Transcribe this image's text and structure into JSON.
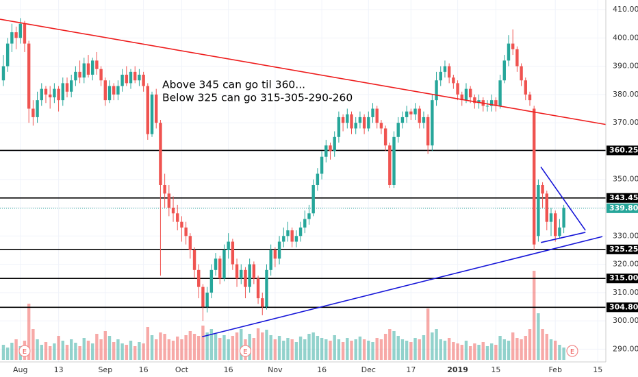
{
  "chart_data": {
    "type": "candlestick",
    "annotations": [
      "Above 345 can go til 360...",
      "Below 325 can go 315-305-290-260"
    ],
    "xlim": [
      -0.8,
      141.9
    ],
    "ylim": [
      285.5,
      413.4
    ],
    "xticks": [
      {
        "value": 4,
        "label": "Aug"
      },
      13,
      {
        "value": 24,
        "label": "Sep"
      },
      {
        "value": 33,
        "label": "16"
      },
      {
        "value": 42,
        "label": "Oct"
      },
      {
        "value": 53,
        "label": "16"
      },
      {
        "value": 64,
        "label": "Nov"
      },
      {
        "value": 75,
        "label": "16"
      },
      {
        "value": 86,
        "label": "Dec"
      },
      {
        "value": 96,
        "label": "17"
      },
      {
        "value": 107,
        "label": "2019"
      },
      {
        "value": 116,
        "label": "15"
      },
      {
        "value": 130,
        "label": "Feb"
      },
      {
        "value": 140,
        "label": "15"
      }
    ],
    "yticks": [
      {
        "value": 290,
        "label": "290.00"
      },
      {
        "value": 300,
        "label": "300.00"
      },
      {
        "value": 310,
        "label": "310.00"
      },
      {
        "value": 320,
        "label": "320.00"
      },
      {
        "value": 330,
        "label": "330.00"
      },
      {
        "value": 340,
        "label": "340.00"
      },
      {
        "value": 350,
        "label": "350.00"
      },
      {
        "value": 360,
        "label": "360.00"
      },
      {
        "value": 370,
        "label": "370.00"
      },
      {
        "value": 380,
        "label": "380.00"
      },
      {
        "value": 390,
        "label": "390.00"
      },
      {
        "value": 400,
        "label": "400.00"
      },
      {
        "value": 410,
        "label": "410.00"
      }
    ],
    "grid": true,
    "up_color": "#26a69a",
    "down_color": "#ef5350",
    "candles": [
      [
        385,
        394,
        383,
        390
      ],
      [
        390,
        400,
        388,
        398
      ],
      [
        398,
        405,
        395,
        402
      ],
      [
        402,
        404,
        396,
        400
      ],
      [
        400,
        407,
        398,
        405
      ],
      [
        405,
        406,
        395,
        398
      ],
      [
        398,
        399,
        370,
        375
      ],
      [
        375,
        378,
        369,
        372
      ],
      [
        372,
        381,
        370,
        378
      ],
      [
        378,
        384,
        376,
        382
      ],
      [
        382,
        383,
        377,
        380
      ],
      [
        380,
        383,
        375,
        379
      ],
      [
        379,
        384,
        377,
        382
      ],
      [
        382,
        383,
        374,
        378
      ],
      [
        378,
        386,
        376,
        384
      ],
      [
        384,
        386,
        379,
        381
      ],
      [
        381,
        387,
        379,
        385
      ],
      [
        385,
        390,
        383,
        388
      ],
      [
        388,
        392,
        384,
        386
      ],
      [
        386,
        393,
        384,
        391
      ],
      [
        391,
        394,
        386,
        387
      ],
      [
        387,
        393,
        385,
        392
      ],
      [
        392,
        395,
        387,
        389
      ],
      [
        389,
        390,
        383,
        385
      ],
      [
        385,
        386,
        376,
        378
      ],
      [
        378,
        385,
        377,
        383
      ],
      [
        383,
        384,
        378,
        380
      ],
      [
        380,
        385,
        378,
        383
      ],
      [
        383,
        389,
        381,
        387
      ],
      [
        387,
        390,
        383,
        384
      ],
      [
        384,
        389,
        382,
        388
      ],
      [
        388,
        390,
        384,
        385
      ],
      [
        385,
        389,
        383,
        387
      ],
      [
        387,
        388,
        381,
        383
      ],
      [
        383,
        384,
        364,
        366
      ],
      [
        366,
        381,
        365,
        380
      ],
      [
        380,
        382,
        368,
        370
      ],
      [
        370,
        371,
        316,
        348
      ],
      [
        348,
        352,
        340,
        345
      ],
      [
        345,
        348,
        337,
        340
      ],
      [
        340,
        344,
        335,
        338
      ],
      [
        338,
        341,
        332,
        335
      ],
      [
        335,
        337,
        328,
        333
      ],
      [
        333,
        335,
        327,
        330
      ],
      [
        330,
        331,
        322,
        325
      ],
      [
        325,
        326,
        315,
        318
      ],
      [
        318,
        320,
        308,
        312
      ],
      [
        312,
        313,
        300,
        305
      ],
      [
        305,
        312,
        303,
        310
      ],
      [
        310,
        320,
        308,
        318
      ],
      [
        318,
        324,
        316,
        322
      ],
      [
        322,
        323,
        313,
        315
      ],
      [
        315,
        327,
        314,
        325
      ],
      [
        325,
        331,
        322,
        328
      ],
      [
        328,
        329,
        318,
        320
      ],
      [
        320,
        322,
        312,
        315
      ],
      [
        315,
        320,
        313,
        318
      ],
      [
        318,
        319,
        308,
        312
      ],
      [
        312,
        322,
        310,
        320
      ],
      [
        320,
        321,
        313,
        315
      ],
      [
        315,
        316,
        306,
        308
      ],
      [
        308,
        310,
        302,
        305
      ],
      [
        305,
        320,
        304,
        318
      ],
      [
        318,
        327,
        316,
        325
      ],
      [
        325,
        326,
        319,
        322
      ],
      [
        322,
        330,
        320,
        328
      ],
      [
        328,
        333,
        326,
        330
      ],
      [
        330,
        335,
        328,
        332
      ],
      [
        332,
        333,
        326,
        328
      ],
      [
        328,
        332,
        326,
        330
      ],
      [
        330,
        335,
        328,
        333
      ],
      [
        333,
        339,
        331,
        336
      ],
      [
        336,
        341,
        334,
        338
      ],
      [
        338,
        350,
        337,
        348
      ],
      [
        348,
        354,
        346,
        352
      ],
      [
        352,
        360,
        350,
        358
      ],
      [
        358,
        364,
        356,
        362
      ],
      [
        362,
        363,
        357,
        360
      ],
      [
        360,
        367,
        358,
        365
      ],
      [
        365,
        374,
        363,
        372
      ],
      [
        372,
        373,
        367,
        370
      ],
      [
        370,
        375,
        368,
        373
      ],
      [
        373,
        374,
        366,
        368
      ],
      [
        368,
        372,
        366,
        370
      ],
      [
        370,
        374,
        368,
        372
      ],
      [
        372,
        373,
        366,
        368
      ],
      [
        368,
        374,
        367,
        372
      ],
      [
        372,
        377,
        370,
        375
      ],
      [
        375,
        376,
        368,
        370
      ],
      [
        370,
        371,
        366,
        368
      ],
      [
        368,
        369,
        360,
        362
      ],
      [
        362,
        363,
        347,
        348
      ],
      [
        348,
        367,
        347,
        365
      ],
      [
        365,
        372,
        363,
        370
      ],
      [
        370,
        374,
        368,
        372
      ],
      [
        372,
        376,
        370,
        374
      ],
      [
        374,
        375,
        371,
        373
      ],
      [
        373,
        377,
        371,
        375
      ],
      [
        375,
        376,
        368,
        370
      ],
      [
        370,
        374,
        368,
        372
      ],
      [
        372,
        373,
        359,
        362
      ],
      [
        362,
        380,
        360,
        378
      ],
      [
        378,
        388,
        376,
        385
      ],
      [
        385,
        390,
        383,
        388
      ],
      [
        388,
        392,
        386,
        390
      ],
      [
        390,
        391,
        384,
        386
      ],
      [
        386,
        387,
        382,
        384
      ],
      [
        384,
        385,
        378,
        380
      ],
      [
        380,
        381,
        376,
        378
      ],
      [
        378,
        384,
        377,
        382
      ],
      [
        382,
        383,
        377,
        379
      ],
      [
        379,
        380,
        375,
        377
      ],
      [
        377,
        380,
        375,
        378
      ],
      [
        378,
        379,
        374,
        376
      ],
      [
        376,
        378,
        374,
        376
      ],
      [
        376,
        380,
        374,
        378
      ],
      [
        378,
        379,
        374,
        376
      ],
      [
        376,
        387,
        375,
        385
      ],
      [
        385,
        394,
        384,
        392
      ],
      [
        392,
        401,
        390,
        398
      ],
      [
        398,
        403,
        394,
        396
      ],
      [
        396,
        397,
        388,
        390
      ],
      [
        390,
        391,
        383,
        385
      ],
      [
        385,
        386,
        378,
        380
      ],
      [
        380,
        381,
        376,
        378
      ],
      [
        375,
        376,
        325,
        327
      ],
      [
        330,
        350,
        328,
        348
      ],
      [
        348,
        349,
        340,
        345
      ],
      [
        345,
        346,
        332,
        335
      ],
      [
        335,
        340,
        330,
        338
      ],
      [
        338,
        339,
        328,
        330
      ],
      [
        330,
        336,
        329,
        333
      ],
      [
        333,
        341,
        331,
        340
      ]
    ],
    "volume": [
      22,
      18,
      25,
      30,
      20,
      28,
      82,
      45,
      30,
      22,
      26,
      20,
      24,
      35,
      28,
      22,
      30,
      25,
      20,
      32,
      28,
      24,
      38,
      30,
      42,
      35,
      26,
      30,
      24,
      22,
      28,
      20,
      26,
      24,
      48,
      36,
      30,
      40,
      38,
      30,
      28,
      34,
      30,
      36,
      42,
      38,
      35,
      50,
      40,
      45,
      38,
      32,
      36,
      30,
      35,
      40,
      45,
      30,
      38,
      32,
      46,
      40,
      44,
      36,
      30,
      35,
      28,
      32,
      30,
      26,
      34,
      30,
      38,
      40,
      35,
      32,
      30,
      28,
      36,
      30,
      26,
      32,
      28,
      30,
      34,
      30,
      28,
      26,
      32,
      30,
      38,
      45,
      42,
      35,
      30,
      28,
      26,
      32,
      30,
      36,
      75,
      40,
      45,
      30,
      28,
      32,
      26,
      24,
      22,
      28,
      20,
      24,
      22,
      26,
      20,
      24,
      22,
      35,
      30,
      28,
      40,
      32,
      30,
      35,
      45,
      130,
      68,
      45,
      38,
      30,
      28,
      22,
      18
    ],
    "levels": [
      {
        "value": 360.25,
        "label": "360.25",
        "color": "#000000"
      },
      {
        "value": 343.45,
        "label": "343.45",
        "color": "#000000"
      },
      {
        "value": 339.8,
        "label": "339.80",
        "color": "#26a69a",
        "dotted": true
      },
      {
        "value": 325.25,
        "label": "325.25",
        "color": "#000000"
      },
      {
        "value": 315,
        "label": "315.00",
        "color": "#000000"
      },
      {
        "value": 304.8,
        "label": "304.80",
        "color": "#000000"
      }
    ],
    "trendlines": [
      {
        "color": "#ee1c1c",
        "points": [
          [
            -0.8,
            406.6
          ],
          [
            141.9,
            369.4
          ]
        ]
      },
      {
        "color": "#1515d8",
        "points": [
          [
            46.8,
            294.4
          ],
          [
            141.1,
            329.8
          ]
        ]
      },
      {
        "color": "#1515d8",
        "points": [
          [
            126.6,
            354.4
          ],
          [
            137.1,
            332
          ]
        ]
      },
      {
        "color": "#1515d8",
        "points": [
          [
            126.6,
            327.7
          ],
          [
            137.1,
            331.3
          ]
        ]
      }
    ],
    "events": [
      {
        "x": 5,
        "label": "E"
      },
      {
        "x": 57,
        "label": "E"
      },
      {
        "x": 134,
        "label": "E"
      }
    ]
  }
}
